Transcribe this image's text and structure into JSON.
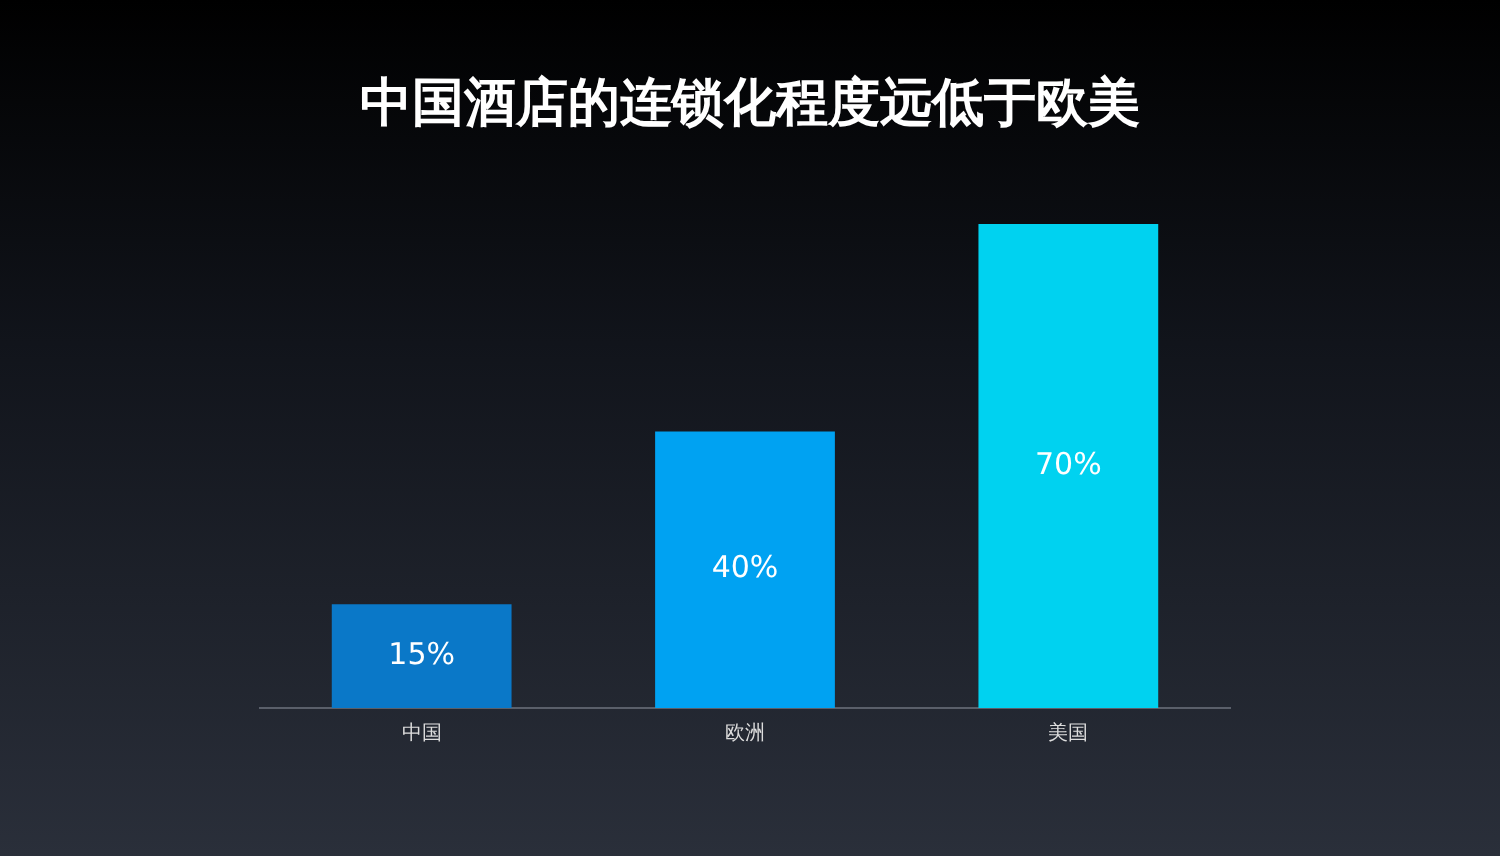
{
  "chart_data": {
    "type": "bar",
    "title": "中国酒店的连锁化程度远低于欧美",
    "categories": [
      "中国",
      "欧洲",
      "美国"
    ],
    "values": [
      15,
      40,
      70
    ],
    "colors": [
      "#0a78c8",
      "#00a2f2",
      "#00d2f0"
    ],
    "value_labels": [
      "15%",
      "40%",
      "70%"
    ]
  }
}
